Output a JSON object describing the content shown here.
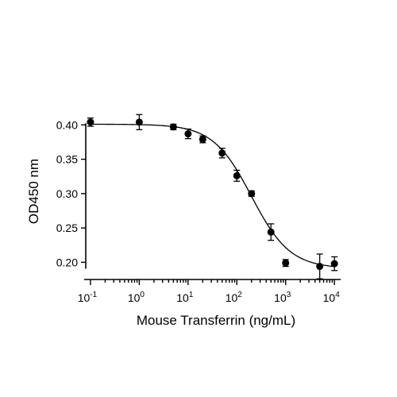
{
  "chart_data": {
    "type": "scatter",
    "title": "",
    "xlabel": "Mouse Transferrin (ng/mL)",
    "ylabel": "OD450 nm",
    "x_scale": "log",
    "xlim": [
      0.08,
      15000
    ],
    "ylim": [
      0.175,
      0.42
    ],
    "x_ticks": [
      {
        "value": 0.1,
        "base": "10",
        "exp": "-1"
      },
      {
        "value": 1,
        "base": "10",
        "exp": "0"
      },
      {
        "value": 10,
        "base": "10",
        "exp": "1"
      },
      {
        "value": 100,
        "base": "10",
        "exp": "2"
      },
      {
        "value": 1000,
        "base": "10",
        "exp": "3"
      },
      {
        "value": 10000,
        "base": "10",
        "exp": "4"
      }
    ],
    "y_ticks": [
      {
        "value": 0.2,
        "label": "0.20"
      },
      {
        "value": 0.25,
        "label": "0.25"
      },
      {
        "value": 0.3,
        "label": "0.30"
      },
      {
        "value": 0.35,
        "label": "0.35"
      },
      {
        "value": 0.4,
        "label": "0.40"
      }
    ],
    "grid": false,
    "series": [
      {
        "points": [
          {
            "x": 0.1,
            "y": 0.404,
            "err": 0.006
          },
          {
            "x": 1,
            "y": 0.404,
            "err": 0.011
          },
          {
            "x": 5,
            "y": 0.397,
            "err": 0.004
          },
          {
            "x": 10,
            "y": 0.387,
            "err": 0.007
          },
          {
            "x": 20,
            "y": 0.379,
            "err": 0.005
          },
          {
            "x": 50,
            "y": 0.359,
            "err": 0.007
          },
          {
            "x": 100,
            "y": 0.326,
            "err": 0.008
          },
          {
            "x": 200,
            "y": 0.3,
            "err": 0.004
          },
          {
            "x": 500,
            "y": 0.244,
            "err": 0.012
          },
          {
            "x": 1000,
            "y": 0.199,
            "err": 0.005
          },
          {
            "x": 5000,
            "y": 0.194,
            "err": 0.018
          },
          {
            "x": 10000,
            "y": 0.198,
            "err": 0.01
          }
        ],
        "fit": {
          "model": "4PL",
          "top": 0.401,
          "bottom": 0.191,
          "ec50": 200,
          "hill": 1.1
        }
      }
    ]
  }
}
